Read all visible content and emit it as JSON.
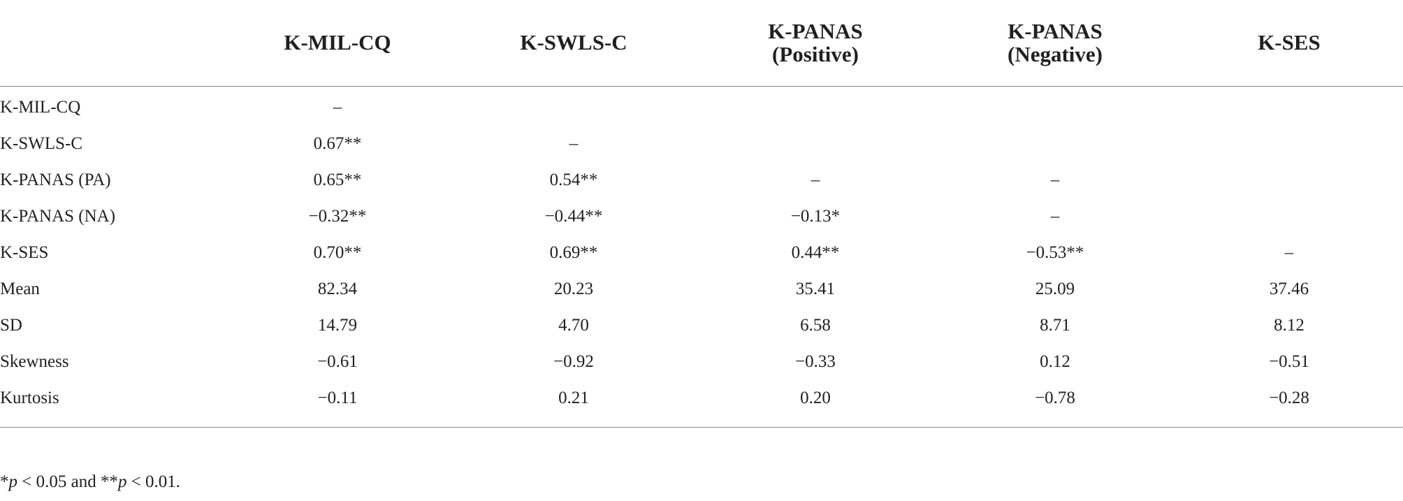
{
  "table": {
    "headers": [
      "K-MIL-CQ",
      "K-SWLS-C",
      "K-PANAS (Positive)",
      "K-PANAS (Negative)",
      "K-SES"
    ],
    "rows": [
      {
        "label": "K-MIL-CQ",
        "cells": [
          "–",
          null,
          null,
          null,
          null
        ]
      },
      {
        "label": "K-SWLS-C",
        "cells": [
          "0.67**",
          "–",
          null,
          null,
          null
        ]
      },
      {
        "label": "K-PANAS (PA)",
        "cells": [
          "0.65**",
          "0.54**",
          "–",
          "–",
          null
        ]
      },
      {
        "label": "K-PANAS (NA)",
        "cells": [
          "−0.32**",
          "−0.44**",
          "−0.13*",
          "–",
          null
        ]
      },
      {
        "label": "K-SES",
        "cells": [
          "0.70**",
          "0.69**",
          "0.44**",
          "−0.53**",
          "–"
        ]
      },
      {
        "label": "Mean",
        "cells": [
          "82.34",
          "20.23",
          "35.41",
          "25.09",
          "37.46"
        ]
      },
      {
        "label": "SD",
        "cells": [
          "14.79",
          "4.70",
          "6.58",
          "8.71",
          "8.12"
        ]
      },
      {
        "label": "Skewness",
        "cells": [
          "−0.61",
          "−0.92",
          "−0.33",
          "0.12",
          "−0.51"
        ]
      },
      {
        "label": "Kurtosis",
        "cells": [
          "−0.11",
          "0.21",
          "0.20",
          "−0.78",
          "−0.28"
        ]
      }
    ]
  },
  "footnote": {
    "parts": [
      "*",
      "p",
      " < 0.05 and **",
      "p",
      " < 0.01."
    ]
  }
}
